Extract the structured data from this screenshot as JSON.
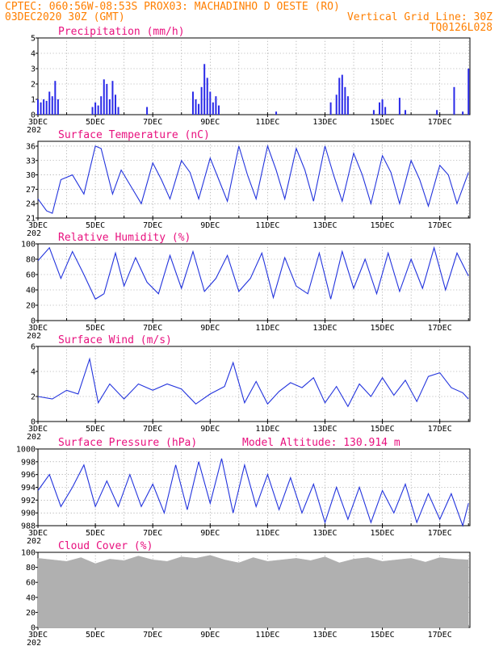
{
  "header": {
    "line1_left": "CPTEC:  060:56W-08:53S  PROX03: MACHADINHO D OESTE (RO)",
    "line2_left": "03DEC2020 30Z (GMT)",
    "line2_right": "Vertical Grid Line: 30Z",
    "line3_right": "TQ0126L028",
    "altitude": "Model Altitude: 130.914 m"
  },
  "x_ticks": [
    "3DEC",
    "5DEC",
    "7DEC",
    "9DEC",
    "11DEC",
    "13DEC",
    "15DEC",
    "17DEC"
  ],
  "x_sub_label": "202",
  "colors": {
    "line": "#2233dd",
    "bar": "#2a2ae8",
    "cloud": "#b0b0b0",
    "title": "#e8107e",
    "header": "#ff7f00"
  },
  "chart_data": [
    {
      "type": "bar",
      "title": "Precipitation (mm/h)",
      "ylim": [
        0,
        5
      ],
      "yticks": [
        "0",
        "1",
        "2",
        "3",
        "4",
        "5"
      ],
      "x": [
        3.0,
        3.1,
        3.2,
        3.3,
        3.4,
        3.5,
        3.6,
        3.7,
        4.9,
        5.0,
        5.1,
        5.2,
        5.3,
        5.4,
        5.5,
        5.6,
        5.7,
        5.8,
        6.8,
        8.4,
        8.5,
        8.6,
        8.7,
        8.8,
        8.9,
        9.0,
        9.1,
        9.2,
        9.3,
        11.3,
        13.2,
        13.4,
        13.5,
        13.6,
        13.7,
        13.8,
        14.7,
        14.9,
        15.0,
        15.1,
        15.6,
        15.8,
        16.9,
        17.5,
        17.8,
        18.0
      ],
      "values": [
        1.0,
        0.8,
        1.0,
        0.9,
        1.5,
        1.2,
        2.2,
        1.0,
        0.5,
        0.8,
        0.6,
        1.2,
        2.3,
        2.0,
        1.0,
        2.2,
        1.3,
        0.5,
        0.5,
        1.5,
        1.0,
        0.7,
        1.8,
        3.3,
        2.4,
        1.5,
        0.8,
        1.2,
        0.6,
        0.2,
        0.8,
        1.3,
        2.4,
        2.6,
        1.8,
        1.2,
        0.3,
        0.8,
        1.0,
        0.5,
        1.1,
        0.3,
        0.3,
        1.8,
        0.2,
        3.0
      ]
    },
    {
      "type": "line",
      "title": "Surface Temperature (nC)",
      "ylim": [
        21,
        37
      ],
      "yticks": [
        "21",
        "24",
        "27",
        "30",
        "33",
        "36"
      ],
      "x": [
        3.0,
        3.3,
        3.5,
        3.8,
        4.2,
        4.6,
        5.0,
        5.2,
        5.6,
        5.9,
        6.3,
        6.6,
        7.0,
        7.3,
        7.6,
        8.0,
        8.3,
        8.6,
        9.0,
        9.3,
        9.6,
        10.0,
        10.3,
        10.6,
        11.0,
        11.3,
        11.6,
        12.0,
        12.3,
        12.6,
        13.0,
        13.3,
        13.6,
        14.0,
        14.3,
        14.6,
        15.0,
        15.3,
        15.6,
        16.0,
        16.3,
        16.6,
        17.0,
        17.3,
        17.6,
        18.0
      ],
      "values": [
        25,
        22.5,
        22,
        29,
        30,
        26,
        36,
        35.5,
        26,
        31,
        27,
        24,
        32.5,
        29,
        25,
        33,
        30.5,
        25,
        33.5,
        29,
        24.5,
        36,
        30,
        25,
        36,
        31,
        25,
        35.5,
        31,
        24.5,
        36,
        30,
        24.5,
        34.5,
        30,
        24,
        34,
        30.5,
        24,
        33,
        29,
        23.5,
        32,
        30,
        24,
        30.5
      ]
    },
    {
      "type": "line",
      "title": "Relative Humidity (%)",
      "ylim": [
        0,
        100
      ],
      "yticks": [
        "0",
        "20",
        "40",
        "60",
        "80",
        "100"
      ],
      "x": [
        3.0,
        3.4,
        3.8,
        4.2,
        4.6,
        5.0,
        5.3,
        5.7,
        6.0,
        6.4,
        6.8,
        7.2,
        7.6,
        8.0,
        8.4,
        8.8,
        9.2,
        9.6,
        10.0,
        10.4,
        10.8,
        11.2,
        11.6,
        12.0,
        12.4,
        12.8,
        13.2,
        13.6,
        14.0,
        14.4,
        14.8,
        15.2,
        15.6,
        16.0,
        16.4,
        16.8,
        17.2,
        17.6,
        18.0
      ],
      "values": [
        78,
        95,
        55,
        90,
        60,
        28,
        35,
        88,
        45,
        82,
        50,
        35,
        85,
        42,
        90,
        38,
        55,
        85,
        38,
        55,
        88,
        30,
        82,
        45,
        35,
        88,
        28,
        90,
        42,
        80,
        35,
        88,
        38,
        80,
        42,
        95,
        40,
        88,
        58
      ]
    },
    {
      "type": "line",
      "title": "Surface Wind (m/s)",
      "ylim": [
        0,
        6
      ],
      "yticks": [
        "0",
        "2",
        "4",
        "6"
      ],
      "x": [
        3.0,
        3.5,
        4.0,
        4.4,
        4.8,
        5.1,
        5.5,
        6.0,
        6.5,
        7.0,
        7.5,
        8.0,
        8.5,
        9.0,
        9.5,
        9.8,
        10.2,
        10.6,
        11.0,
        11.4,
        11.8,
        12.2,
        12.6,
        13.0,
        13.4,
        13.8,
        14.2,
        14.6,
        15.0,
        15.4,
        15.8,
        16.2,
        16.6,
        17.0,
        17.4,
        17.8,
        18.0
      ],
      "values": [
        2.0,
        1.8,
        2.5,
        2.2,
        5.0,
        1.5,
        3.0,
        1.8,
        3.0,
        2.5,
        3.0,
        2.6,
        1.4,
        2.2,
        2.8,
        4.7,
        1.5,
        3.2,
        1.4,
        2.4,
        3.1,
        2.7,
        3.5,
        1.5,
        2.8,
        1.2,
        3.0,
        2.0,
        3.5,
        2.1,
        3.3,
        1.6,
        3.6,
        3.9,
        2.7,
        2.3,
        1.8
      ]
    },
    {
      "type": "line",
      "title": "Surface Pressure (hPa)",
      "ylim": [
        988,
        1000
      ],
      "yticks": [
        "988",
        "990",
        "992",
        "994",
        "996",
        "998",
        "1000"
      ],
      "x": [
        3.0,
        3.4,
        3.8,
        4.2,
        4.6,
        5.0,
        5.4,
        5.8,
        6.2,
        6.6,
        7.0,
        7.4,
        7.8,
        8.2,
        8.6,
        9.0,
        9.4,
        9.8,
        10.2,
        10.6,
        11.0,
        11.4,
        11.8,
        12.2,
        12.6,
        13.0,
        13.4,
        13.8,
        14.2,
        14.6,
        15.0,
        15.4,
        15.8,
        16.2,
        16.6,
        17.0,
        17.4,
        17.8,
        18.0
      ],
      "values": [
        993.5,
        996,
        991,
        994,
        997.5,
        991,
        995,
        991,
        996,
        991,
        994.5,
        990,
        997.5,
        990.5,
        998,
        991.5,
        998.5,
        990,
        997.5,
        991,
        996,
        990.5,
        995.5,
        990,
        994.5,
        988.5,
        994,
        989,
        994,
        988.5,
        993.5,
        990,
        994.5,
        988.5,
        993,
        989,
        993,
        988,
        991.5
      ]
    },
    {
      "type": "area",
      "title": "Cloud Cover (%)",
      "ylim": [
        0,
        100
      ],
      "yticks": [
        "0",
        "20",
        "40",
        "60",
        "80",
        "100"
      ],
      "x": [
        3.0,
        3.5,
        4.0,
        4.5,
        5.0,
        5.5,
        6.0,
        6.5,
        7.0,
        7.5,
        8.0,
        8.5,
        9.0,
        9.5,
        10.0,
        10.5,
        11.0,
        11.5,
        12.0,
        12.5,
        13.0,
        13.5,
        14.0,
        14.5,
        15.0,
        15.5,
        16.0,
        16.5,
        17.0,
        17.5,
        18.0
      ],
      "values": [
        92,
        90,
        88,
        93,
        85,
        91,
        89,
        95,
        90,
        88,
        94,
        92,
        96,
        90,
        86,
        93,
        88,
        90,
        92,
        89,
        94,
        86,
        91,
        93,
        88,
        90,
        92,
        87,
        93,
        91,
        90
      ]
    }
  ]
}
